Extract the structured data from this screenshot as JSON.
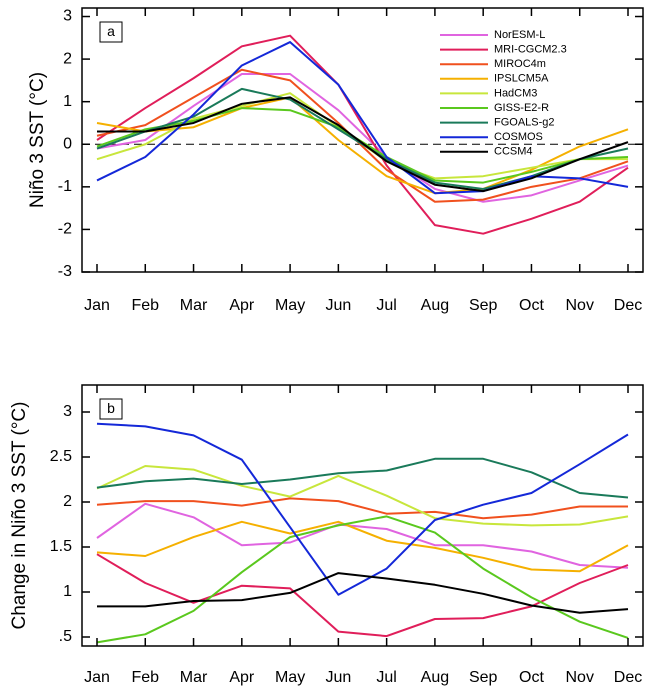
{
  "chart_data": [
    {
      "type": "line",
      "label": "a",
      "y_label": "Niño 3 SST (°C)",
      "categories": [
        "Jan",
        "Feb",
        "Mar",
        "Apr",
        "May",
        "Jun",
        "Jul",
        "Aug",
        "Sep",
        "Oct",
        "Nov",
        "Dec"
      ],
      "ylim": [
        -3,
        3.2
      ],
      "yticks": [
        -3,
        -2,
        -1,
        0,
        1,
        2,
        3
      ],
      "reference_line": 0,
      "legend": "upper-right",
      "series": [
        {
          "name": "NorESM-L",
          "color": "#e064e0",
          "values": [
            -0.1,
            0.1,
            0.9,
            1.65,
            1.65,
            0.8,
            -0.3,
            -1.05,
            -1.35,
            -1.2,
            -0.85,
            -0.5
          ]
        },
        {
          "name": "MRI-CGCM2.3",
          "color": "#e01e5a",
          "values": [
            0.1,
            0.85,
            1.55,
            2.3,
            2.55,
            1.4,
            -0.5,
            -1.9,
            -2.1,
            -1.75,
            -1.35,
            -0.55
          ]
        },
        {
          "name": "MIROC4m",
          "color": "#f0501e",
          "values": [
            0.2,
            0.45,
            1.1,
            1.75,
            1.5,
            0.5,
            -0.6,
            -1.35,
            -1.3,
            -1.0,
            -0.8,
            -0.4
          ]
        },
        {
          "name": "IPSLCM5A",
          "color": "#f5b000",
          "values": [
            0.5,
            0.3,
            0.4,
            0.85,
            1.1,
            0.1,
            -0.75,
            -1.15,
            -1.05,
            -0.6,
            -0.05,
            0.35
          ]
        },
        {
          "name": "HadCM3",
          "color": "#c8e63c",
          "values": [
            -0.35,
            0.0,
            0.6,
            0.9,
            1.2,
            0.4,
            -0.4,
            -0.8,
            -0.75,
            -0.55,
            -0.35,
            -0.35
          ]
        },
        {
          "name": "GISS-E2-R",
          "color": "#5ac81e",
          "values": [
            -0.05,
            0.35,
            0.55,
            0.85,
            0.8,
            0.4,
            -0.3,
            -0.85,
            -0.9,
            -0.65,
            -0.35,
            -0.3
          ]
        },
        {
          "name": "FGOALS-g2",
          "color": "#1a7a5a",
          "values": [
            -0.1,
            0.3,
            0.65,
            1.3,
            1.05,
            0.35,
            -0.35,
            -0.9,
            -1.05,
            -0.75,
            -0.35,
            -0.1
          ]
        },
        {
          "name": "COSMOS",
          "color": "#1428d8",
          "values": [
            -0.85,
            -0.3,
            0.7,
            1.85,
            2.4,
            1.4,
            -0.3,
            -1.15,
            -1.1,
            -0.75,
            -0.8,
            -1.0
          ]
        },
        {
          "name": "CCSM4",
          "color": "#000000",
          "values": [
            0.3,
            0.3,
            0.5,
            0.95,
            1.1,
            0.45,
            -0.4,
            -0.95,
            -1.1,
            -0.8,
            -0.35,
            0.05
          ]
        }
      ]
    },
    {
      "type": "line",
      "label": "b",
      "y_label": "Change in Niño 3 SST (°C)",
      "categories": [
        "Jan",
        "Feb",
        "Mar",
        "Apr",
        "May",
        "Jun",
        "Jul",
        "Aug",
        "Sep",
        "Oct",
        "Nov",
        "Dec"
      ],
      "ylim": [
        0.4,
        3.3
      ],
      "yticks": [
        {
          "value": 0.5,
          "label": ".5"
        },
        1,
        1.5,
        2,
        2.5,
        3
      ],
      "series": [
        {
          "color": "#e064e0",
          "values": [
            1.6,
            1.98,
            1.83,
            1.52,
            1.55,
            1.75,
            1.7,
            1.52,
            1.52,
            1.45,
            1.3,
            1.27
          ]
        },
        {
          "color": "#e01e5a",
          "values": [
            1.42,
            1.1,
            0.88,
            1.07,
            1.04,
            0.56,
            0.51,
            0.7,
            0.71,
            0.84,
            1.1,
            1.3
          ]
        },
        {
          "color": "#f0501e",
          "values": [
            1.97,
            2.01,
            2.01,
            1.96,
            2.04,
            2.01,
            1.87,
            1.89,
            1.82,
            1.86,
            1.95,
            1.95
          ]
        },
        {
          "color": "#f5b000",
          "values": [
            1.44,
            1.4,
            1.61,
            1.78,
            1.65,
            1.78,
            1.57,
            1.49,
            1.38,
            1.25,
            1.23,
            1.52
          ]
        },
        {
          "color": "#c8e63c",
          "values": [
            2.15,
            2.4,
            2.36,
            2.18,
            2.06,
            2.29,
            2.07,
            1.82,
            1.76,
            1.74,
            1.75,
            1.84
          ]
        },
        {
          "color": "#5ac81e",
          "values": [
            0.44,
            0.53,
            0.79,
            1.22,
            1.61,
            1.74,
            1.84,
            1.66,
            1.26,
            0.94,
            0.67,
            0.49
          ]
        },
        {
          "color": "#1a7a5a",
          "values": [
            2.16,
            2.23,
            2.26,
            2.2,
            2.25,
            2.32,
            2.35,
            2.48,
            2.48,
            2.33,
            2.1,
            2.05
          ]
        },
        {
          "color": "#1428d8",
          "values": [
            2.87,
            2.84,
            2.74,
            2.47,
            1.72,
            0.97,
            1.26,
            1.8,
            1.97,
            2.1,
            2.42,
            2.75
          ]
        },
        {
          "color": "#000000",
          "values": [
            0.84,
            0.84,
            0.9,
            0.91,
            0.99,
            1.21,
            1.15,
            1.08,
            0.98,
            0.85,
            0.77,
            0.81
          ]
        }
      ]
    }
  ]
}
